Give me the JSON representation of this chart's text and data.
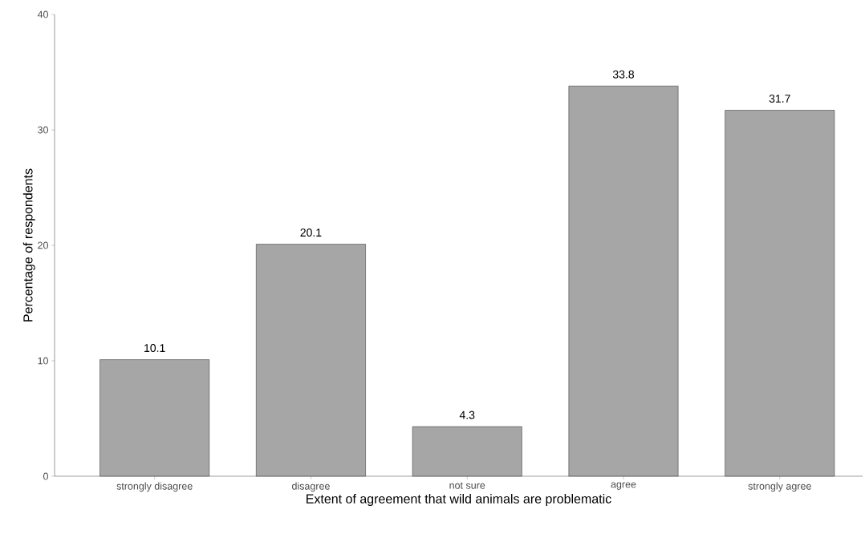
{
  "chart_data": {
    "type": "bar",
    "xlabel": "Extent of agreement that wild animals are problematic",
    "ylabel": "Percentage of respondents",
    "categories": [
      "strongly disagree",
      "disagree",
      "not sure",
      "agree",
      "strongly agree"
    ],
    "values": [
      10.1,
      20.1,
      4.3,
      33.8,
      31.7
    ],
    "color": "#a6a6a6",
    "ylim": [
      0,
      40
    ],
    "yticks": [
      0,
      10,
      20,
      30,
      40
    ],
    "grid": false,
    "data_labels": true
  }
}
